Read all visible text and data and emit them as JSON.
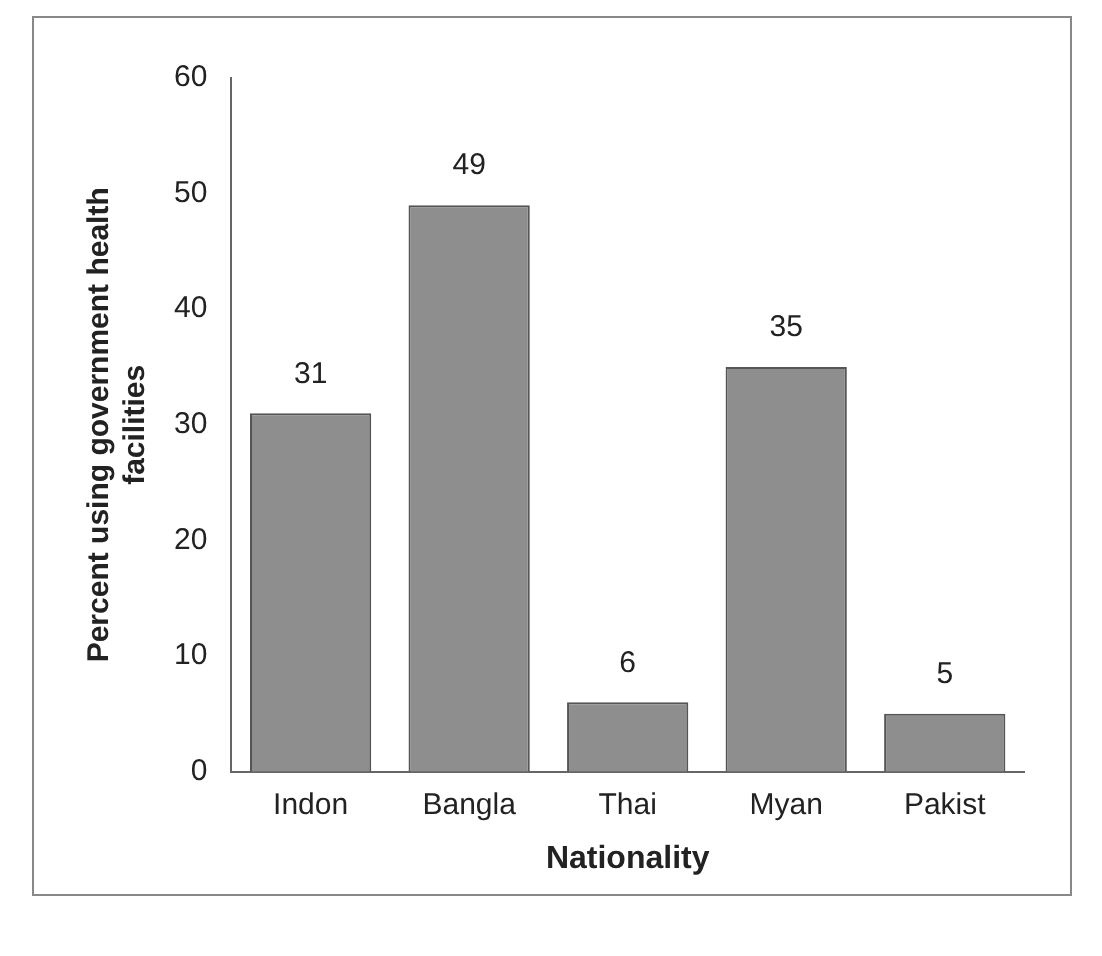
{
  "chart_data": {
    "type": "bar",
    "xlabel": "Nationality",
    "ylabel": "Percent using government health facilities",
    "categories": [
      "Indon",
      "Bangla",
      "Thai",
      "Myan",
      "Pakist"
    ],
    "values": [
      31,
      49,
      6,
      35,
      5
    ],
    "color": "#8e8e8e",
    "data_labels": true,
    "ylim": [
      0,
      60
    ],
    "yticks": [
      0,
      10,
      20,
      30,
      40,
      50,
      60
    ],
    "grid": false,
    "legend": false
  }
}
